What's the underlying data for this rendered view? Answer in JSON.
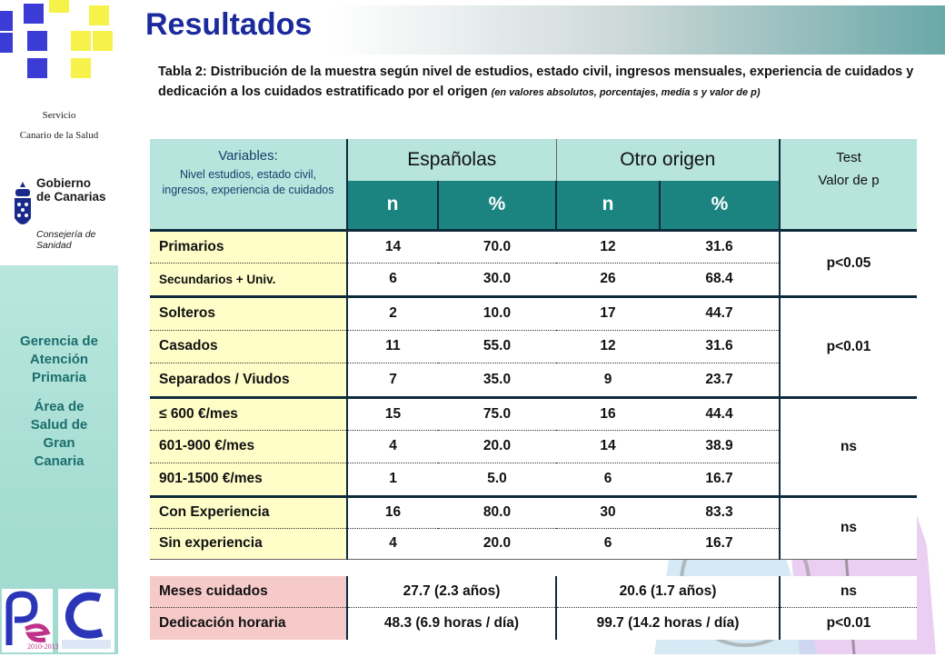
{
  "sidebar": {
    "servicio_line1": "Servicio",
    "servicio_line2": "Canario de la Salud",
    "gobierno_name_1": "Gobierno",
    "gobierno_name_2": "de Canarias",
    "gobierno_sub": "Consejería de Sanidad",
    "gerencia_1": "Gerencia de",
    "gerencia_2": "Atención",
    "gerencia_3": "Primaria",
    "area_1": "Área de",
    "area_2": "Salud de",
    "area_3": "Gran",
    "area_4": "Canaria",
    "badge_years": "2010-2013"
  },
  "title": "Resultados",
  "caption": {
    "text": "Tabla 2:  Distribución de la muestra según nivel de estudios, estado civil, ingresos mensuales, experiencia de cuidados y dedicación a los cuidados estratificado por el origen",
    "note": "(en valores absolutos, porcentajes,  media s y valor de p)"
  },
  "table": {
    "header": {
      "variables": "Variables:",
      "variables_sub": "Nivel estudios, estado civil, ingresos, experiencia de cuidados",
      "group_es": "Españolas",
      "group_otro": "Otro origen",
      "n": "n",
      "pct": "%",
      "test_1": "Test",
      "test_2": "Valor de p"
    },
    "rows": [
      {
        "label": "Primarios",
        "n1": "14",
        "p1": "70.0",
        "n2": "12",
        "p2": "31.6"
      },
      {
        "label": "Secundarios + Univ.",
        "n1": "6",
        "p1": "30.0",
        "n2": "26",
        "p2": "68.4"
      },
      {
        "label": "Solteros",
        "n1": "2",
        "p1": "10.0",
        "n2": "17",
        "p2": "44.7"
      },
      {
        "label": "Casados",
        "n1": "11",
        "p1": "55.0",
        "n2": "12",
        "p2": "31.6"
      },
      {
        "label": "Separados / Viudos",
        "n1": "7",
        "p1": "35.0",
        "n2": "9",
        "p2": "23.7"
      },
      {
        "label": "≤ 600 €/mes",
        "n1": "15",
        "p1": "75.0",
        "n2": "16",
        "p2": "44.4"
      },
      {
        "label": "601-900 €/mes",
        "n1": "4",
        "p1": "20.0",
        "n2": "14",
        "p2": "38.9"
      },
      {
        "label": "901-1500 €/mes",
        "n1": "1",
        "p1": "5.0",
        "n2": "6",
        "p2": "16.7"
      },
      {
        "label": "Con Experiencia",
        "n1": "16",
        "p1": "80.0",
        "n2": "30",
        "p2": "83.3"
      },
      {
        "label": "Sin experiencia",
        "n1": "4",
        "p1": "20.0",
        "n2": "6",
        "p2": "16.7"
      }
    ],
    "pvalues": {
      "estudios": "p<0.05",
      "civil": "p<0.01",
      "ingresos": "ns",
      "experiencia": "ns"
    }
  },
  "bottom": [
    {
      "label": "Meses cuidados",
      "es": "27.7 (2.3 años)",
      "otro": "20.6 (1.7 años)",
      "p": "ns"
    },
    {
      "label": "Dedicación horaria",
      "es": "48.3 (6.9 horas / día)",
      "otro": "99.7 (14.2 horas / día)",
      "p": "p<0.01"
    }
  ]
}
